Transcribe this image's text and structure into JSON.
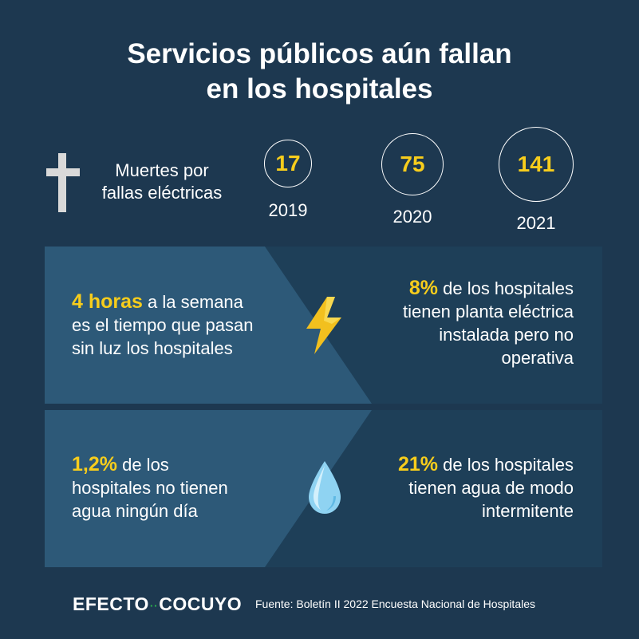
{
  "title": {
    "line1": "Servicios públicos aún fallan",
    "line2": "en los hospitales"
  },
  "deaths": {
    "icon": "cross-icon",
    "label_line1": "Muertes por",
    "label_line2": "fallas eléctricas",
    "stats": [
      {
        "value": "17",
        "year": "2019"
      },
      {
        "value": "75",
        "year": "2020"
      },
      {
        "value": "141",
        "year": "2021"
      }
    ]
  },
  "electricity": {
    "icon": "lightning-icon",
    "left": {
      "highlight": "4 horas",
      "line1_rest": " a la semana",
      "line2": "es el tiempo que pasan",
      "line3": "sin luz los hospitales"
    },
    "right": {
      "highlight": "8%",
      "line1_rest": " de los hospitales",
      "line2": "tienen planta eléctrica",
      "line3": "instalada pero no",
      "line4": "operativa"
    }
  },
  "water": {
    "icon": "water-drop-icon",
    "left": {
      "highlight": "1,2%",
      "line1_rest": " de los",
      "line2": "hospitales no tienen",
      "line3": "agua ningún día"
    },
    "right": {
      "highlight": "21%",
      "line1_rest": " de los hospitales",
      "line2": "tienen agua de modo",
      "line3": "intermitente"
    }
  },
  "footer": {
    "logo_left": "EFECTO",
    "logo_dots": "··",
    "logo_right": "COCUYO",
    "source": "Fuente: Boletín II 2022 Encuesta Nacional de Hospitales"
  },
  "colors": {
    "background": "#1d3850",
    "panel_light": "#2d5978",
    "panel_dark": "#1e3f58",
    "highlight": "#f7cd1c",
    "logo_dots": "#2bb24c"
  }
}
